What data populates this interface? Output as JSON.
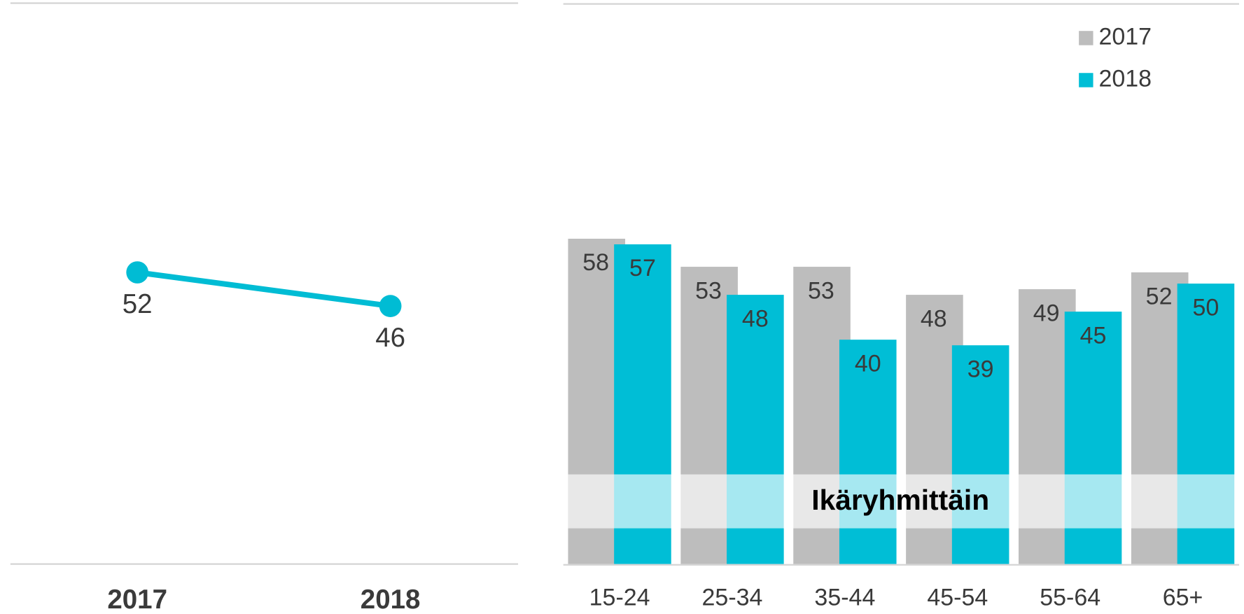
{
  "chart_data": [
    {
      "type": "line",
      "categories": [
        "2017",
        "2018"
      ],
      "values": [
        52,
        46
      ],
      "color": "#00bcd4",
      "ylim": [
        0,
        100
      ]
    },
    {
      "type": "bar",
      "categories": [
        "15-24",
        "25-34",
        "35-44",
        "45-54",
        "55-64",
        "65+"
      ],
      "series": [
        {
          "name": "2017",
          "color": "#bdbdbd",
          "values": [
            58,
            53,
            53,
            48,
            49,
            52
          ]
        },
        {
          "name": "2018",
          "color": "#00bed6",
          "values": [
            57,
            48,
            40,
            39,
            45,
            50
          ]
        }
      ],
      "ylim": [
        0,
        100
      ],
      "legend": "top-right",
      "annotation": "Ikäryhmittäin"
    }
  ]
}
